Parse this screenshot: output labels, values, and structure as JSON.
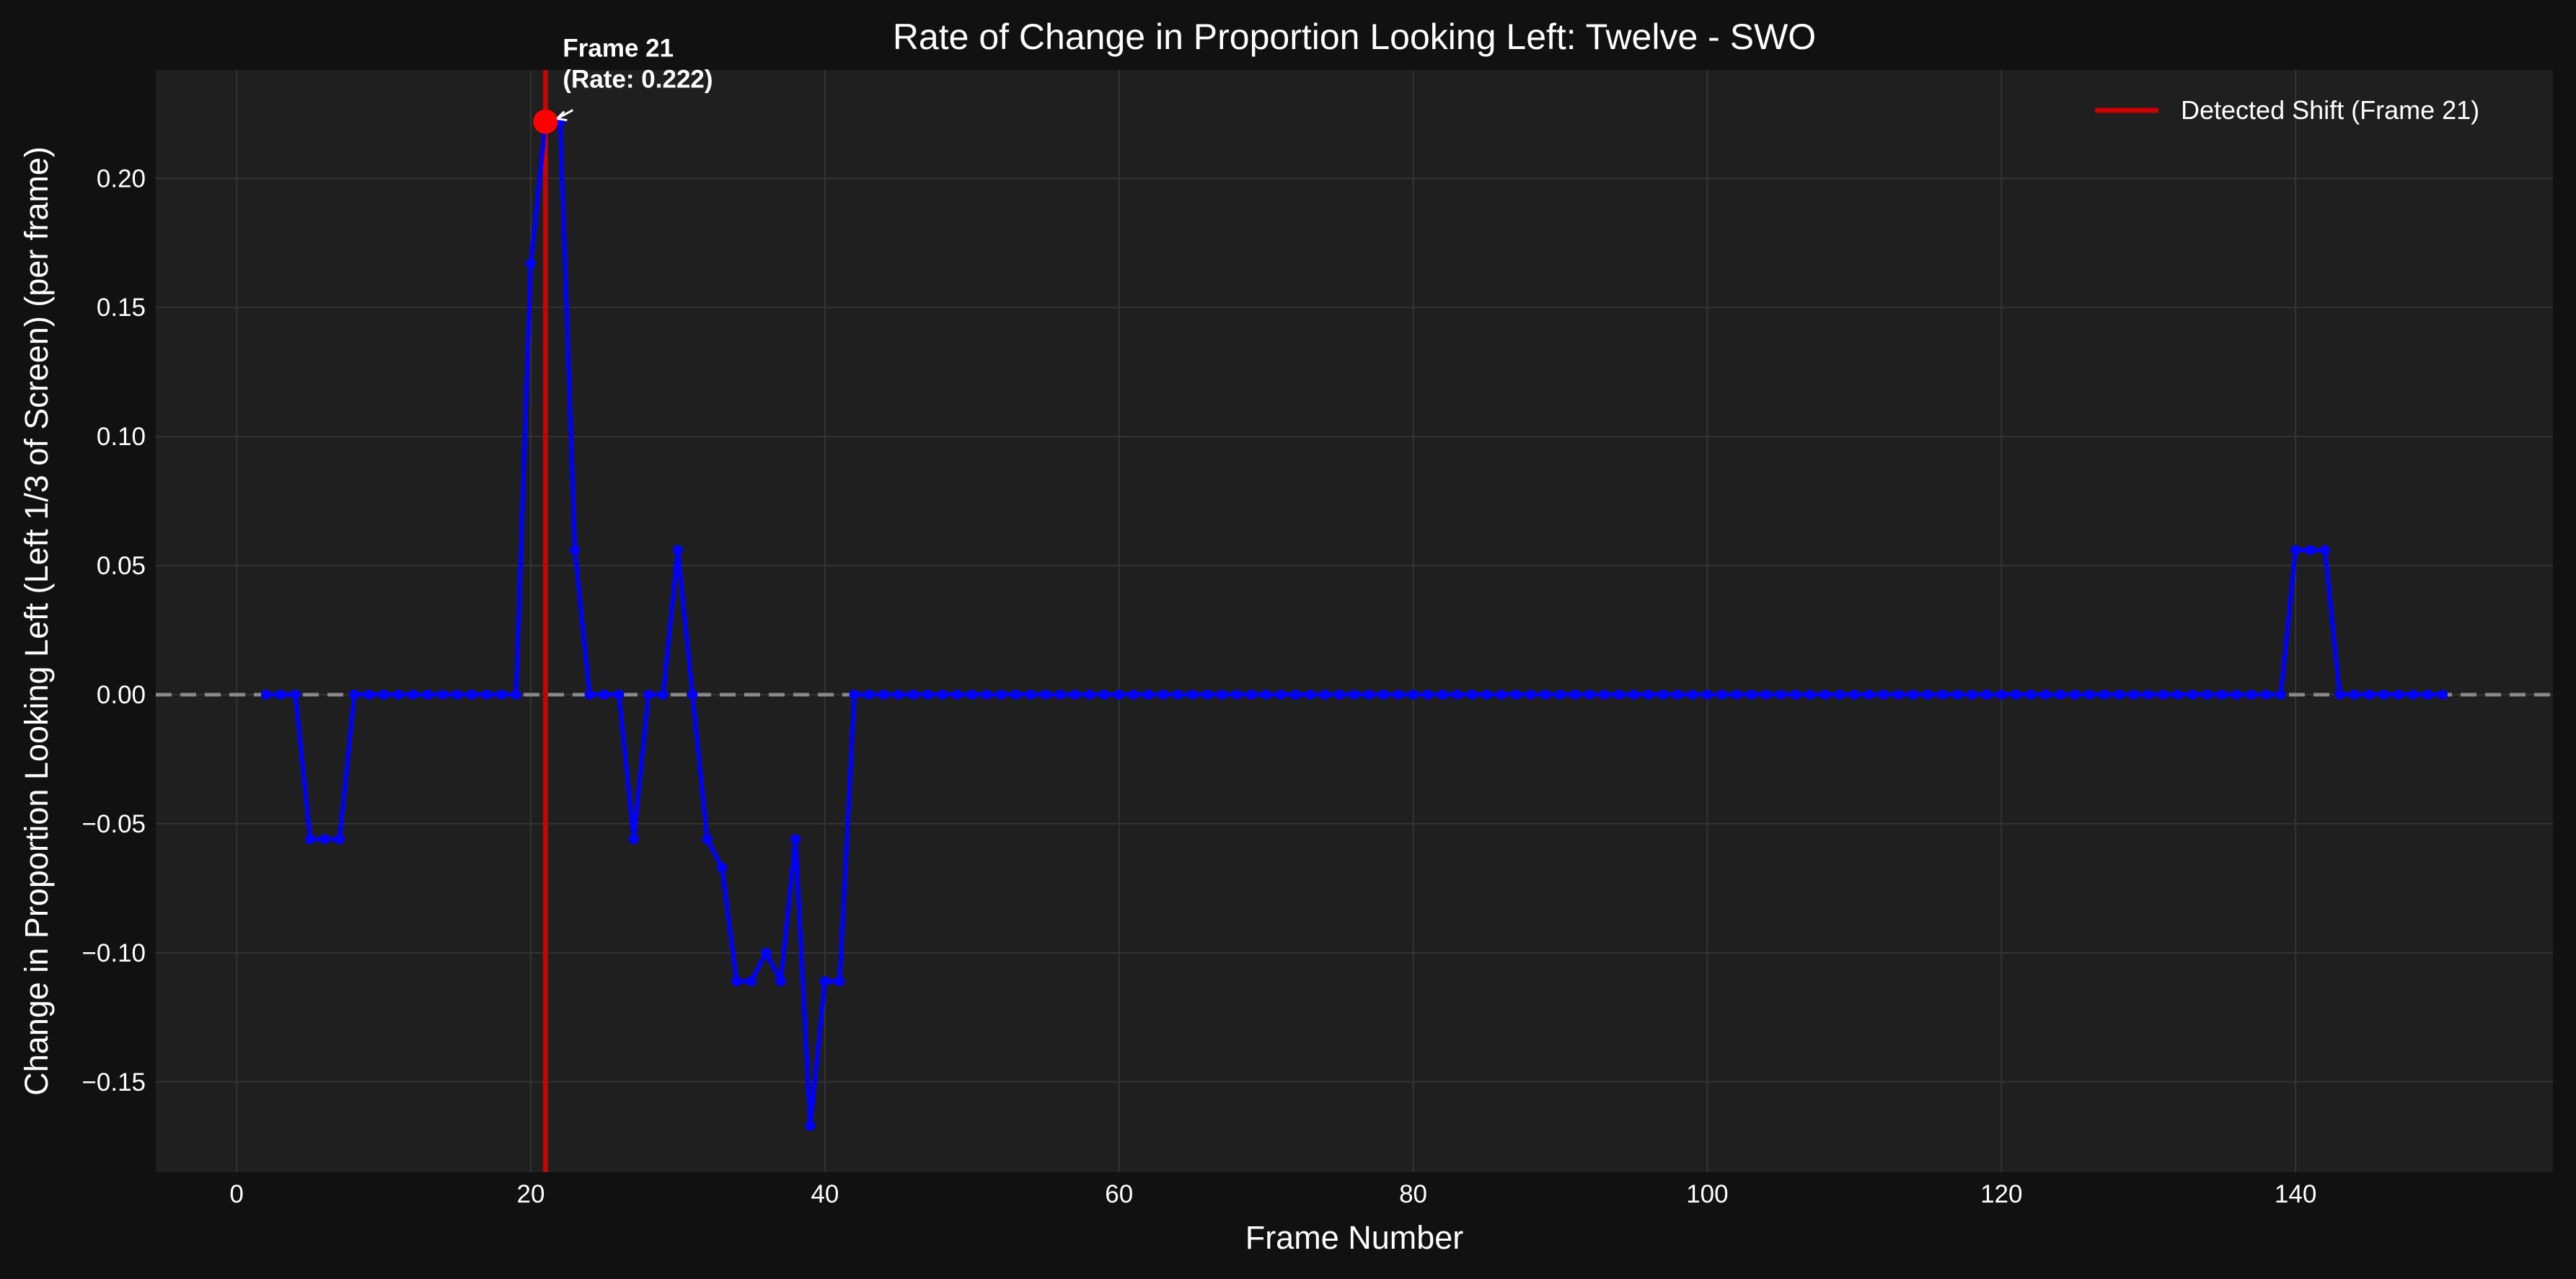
{
  "chart_data": {
    "type": "line",
    "title": "Rate of Change in Proportion Looking Left: Twelve - SWO",
    "xlabel": "Frame Number",
    "ylabel": "Change in Proportion Looking Left (Left 1/3 of Screen) (per frame)",
    "xlim": [
      -5.5,
      157.5
    ],
    "ylim": [
      -0.185,
      0.242
    ],
    "xticks": [
      0,
      20,
      40,
      60,
      80,
      100,
      120,
      140
    ],
    "xtick_labels": [
      "0",
      "20",
      "40",
      "60",
      "80",
      "100",
      "120",
      "140"
    ],
    "yticks": [
      -0.15,
      -0.1,
      -0.05,
      0.0,
      0.05,
      0.1,
      0.15,
      0.2
    ],
    "ytick_labels": [
      "−0.15",
      "−0.10",
      "−0.05",
      "0.00",
      "0.05",
      "0.10",
      "0.15",
      "0.20"
    ],
    "grid": true,
    "zero_line": {
      "y": 0,
      "style": "dashed",
      "color": "#888888"
    },
    "series": [
      {
        "color": "#0000ff",
        "x": [
          2,
          3,
          4,
          5,
          6,
          7,
          8,
          9,
          10,
          11,
          12,
          13,
          14,
          15,
          16,
          17,
          18,
          19,
          20,
          21,
          22,
          23,
          24,
          25,
          26,
          27,
          28,
          29,
          30,
          31,
          32,
          33,
          34,
          35,
          36,
          37,
          38,
          39,
          40,
          41,
          42,
          43,
          44,
          45,
          46,
          47,
          48,
          49,
          50,
          51,
          52,
          53,
          54,
          55,
          56,
          57,
          58,
          59,
          60,
          61,
          62,
          63,
          64,
          65,
          66,
          67,
          68,
          69,
          70,
          71,
          72,
          73,
          74,
          75,
          76,
          77,
          78,
          79,
          80,
          81,
          82,
          83,
          84,
          85,
          86,
          87,
          88,
          89,
          90,
          91,
          92,
          93,
          94,
          95,
          96,
          97,
          98,
          99,
          100,
          101,
          102,
          103,
          104,
          105,
          106,
          107,
          108,
          109,
          110,
          111,
          112,
          113,
          114,
          115,
          116,
          117,
          118,
          119,
          120,
          121,
          122,
          123,
          124,
          125,
          126,
          127,
          128,
          129,
          130,
          131,
          132,
          133,
          134,
          135,
          136,
          137,
          138,
          139,
          140,
          141,
          142,
          143,
          144,
          145,
          146,
          147,
          148,
          149,
          150
        ],
        "y": [
          0,
          0,
          0,
          -0.056,
          -0.056,
          -0.056,
          0,
          0,
          0,
          0,
          0,
          0,
          0,
          0,
          0,
          0,
          0,
          0,
          0.167,
          0.222,
          0.222,
          0.056,
          0,
          0,
          0,
          -0.056,
          0,
          0,
          0.056,
          0,
          -0.056,
          -0.067,
          -0.111,
          -0.111,
          -0.1,
          -0.111,
          -0.056,
          -0.167,
          -0.111,
          -0.111,
          0,
          0,
          0,
          0,
          0,
          0,
          0,
          0,
          0,
          0,
          0,
          0,
          0,
          0,
          0,
          0,
          0,
          0,
          0,
          0,
          0,
          0,
          0,
          0,
          0,
          0,
          0,
          0,
          0,
          0,
          0,
          0,
          0,
          0,
          0,
          0,
          0,
          0,
          0,
          0,
          0,
          0,
          0,
          0,
          0,
          0,
          0,
          0,
          0,
          0,
          0,
          0,
          0,
          0,
          0,
          0,
          0,
          0,
          0,
          0,
          0,
          0,
          0,
          0,
          0,
          0,
          0,
          0,
          0,
          0,
          0,
          0,
          0,
          0,
          0,
          0,
          0,
          0,
          0,
          0,
          0,
          0,
          0,
          0,
          0,
          0,
          0,
          0,
          0,
          0,
          0,
          0,
          0,
          0,
          0,
          0,
          0,
          0,
          0.056,
          0.056,
          0.056,
          0,
          0,
          0,
          0,
          0,
          0,
          0,
          0
        ]
      }
    ],
    "vline": {
      "x": 21,
      "color": "#cc0000",
      "legend": "Detected Shift (Frame 21)"
    },
    "highlight_point": {
      "x": 21,
      "y": 0.222,
      "color": "#ff0000"
    },
    "annotation": {
      "line1": "Frame 21",
      "line2": "(Rate: 0.222)"
    },
    "legend_position": "top-right",
    "colors": {
      "background": "#111111",
      "plot_background": "#1f1f1f",
      "grid": "#333333",
      "text": "#ffffff"
    }
  }
}
